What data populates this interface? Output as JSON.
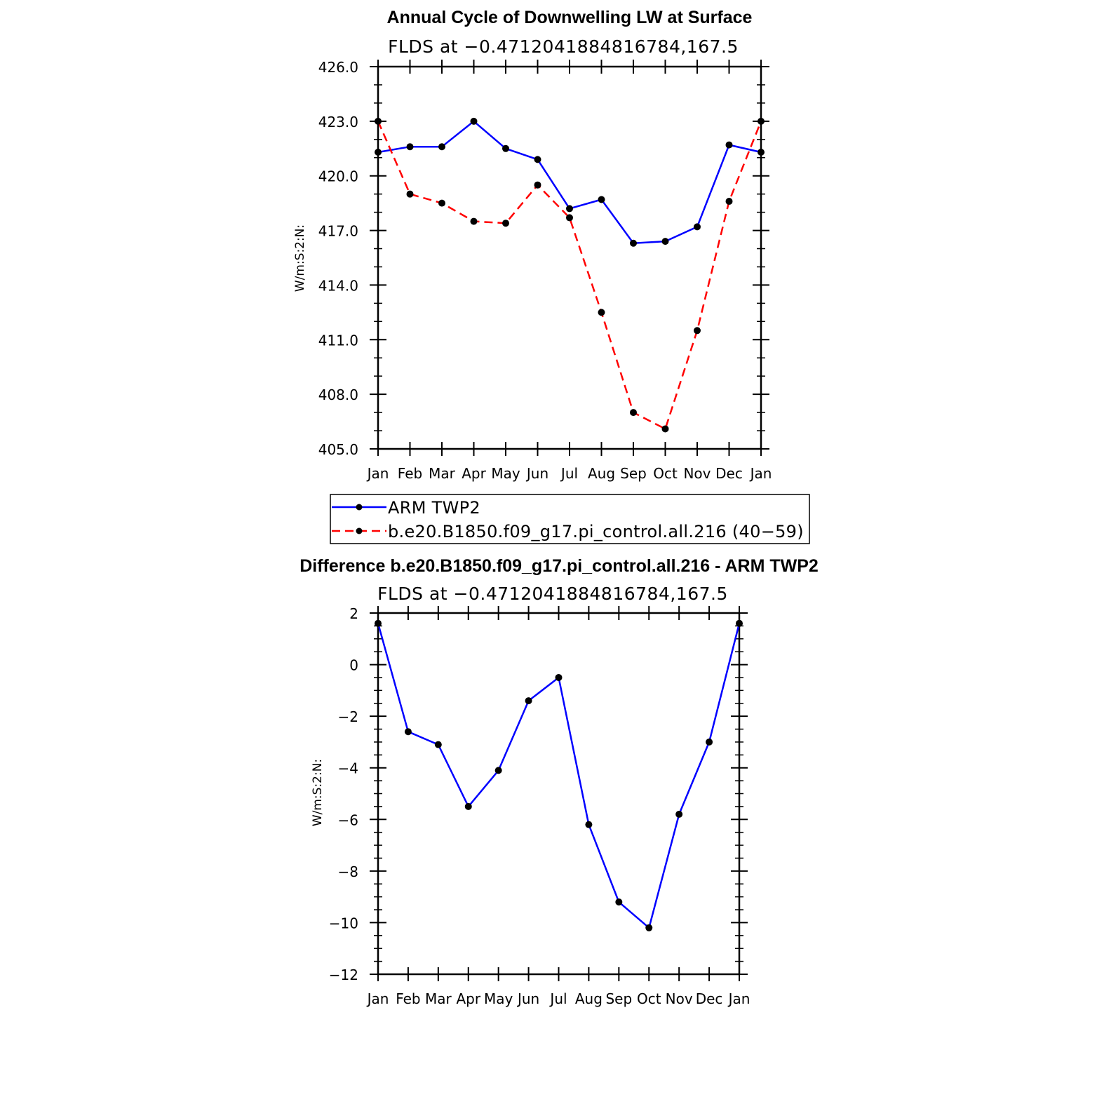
{
  "chart_data": [
    {
      "type": "line",
      "title": "Annual Cycle of Downwelling LW at Surface",
      "subtitle": "FLDS at −0.4712041884816784,167.5",
      "ylabel": "W/m:S:2:N:",
      "categories": [
        "Jan",
        "Feb",
        "Mar",
        "Apr",
        "May",
        "Jun",
        "Jul",
        "Aug",
        "Sep",
        "Oct",
        "Nov",
        "Dec",
        "Jan"
      ],
      "ylim": [
        405,
        426
      ],
      "yticks": [
        "405.0",
        "408.0",
        "411.0",
        "414.0",
        "417.0",
        "420.0",
        "423.0",
        "426.0"
      ],
      "series": [
        {
          "name": "ARM TWP2",
          "color": "#0000ff",
          "dash": "solid",
          "values": [
            421.3,
            421.6,
            421.6,
            423.0,
            421.5,
            420.9,
            418.2,
            418.7,
            416.3,
            416.4,
            417.2,
            421.7,
            421.3
          ]
        },
        {
          "name": "b.e20.B1850.f09_g17.pi_control.all.216 (40−59)",
          "color": "#ff0000",
          "dash": "dashed",
          "values": [
            423.0,
            419.0,
            418.5,
            417.5,
            417.4,
            419.5,
            417.7,
            412.5,
            407.0,
            406.1,
            411.5,
            418.6,
            423.0
          ]
        }
      ],
      "legend_position": "below"
    },
    {
      "type": "line",
      "title": "Difference b.e20.B1850.f09_g17.pi_control.all.216 - ARM TWP2",
      "subtitle": "FLDS at −0.4712041884816784,167.5",
      "ylabel": "W/m:S:2:N:",
      "categories": [
        "Jan",
        "Feb",
        "Mar",
        "Apr",
        "May",
        "Jun",
        "Jul",
        "Aug",
        "Sep",
        "Oct",
        "Nov",
        "Dec",
        "Jan"
      ],
      "ylim": [
        -12,
        2
      ],
      "yticks": [
        "−12",
        "−10",
        "−8",
        "−6",
        "−4",
        "−2",
        "0",
        "2"
      ],
      "series": [
        {
          "color": "#0000ff",
          "dash": "solid",
          "values": [
            1.6,
            -2.6,
            -3.1,
            -5.5,
            -4.1,
            -1.4,
            -0.5,
            -6.2,
            -9.2,
            -10.2,
            -5.8,
            -3.0,
            1.6
          ]
        }
      ]
    }
  ]
}
